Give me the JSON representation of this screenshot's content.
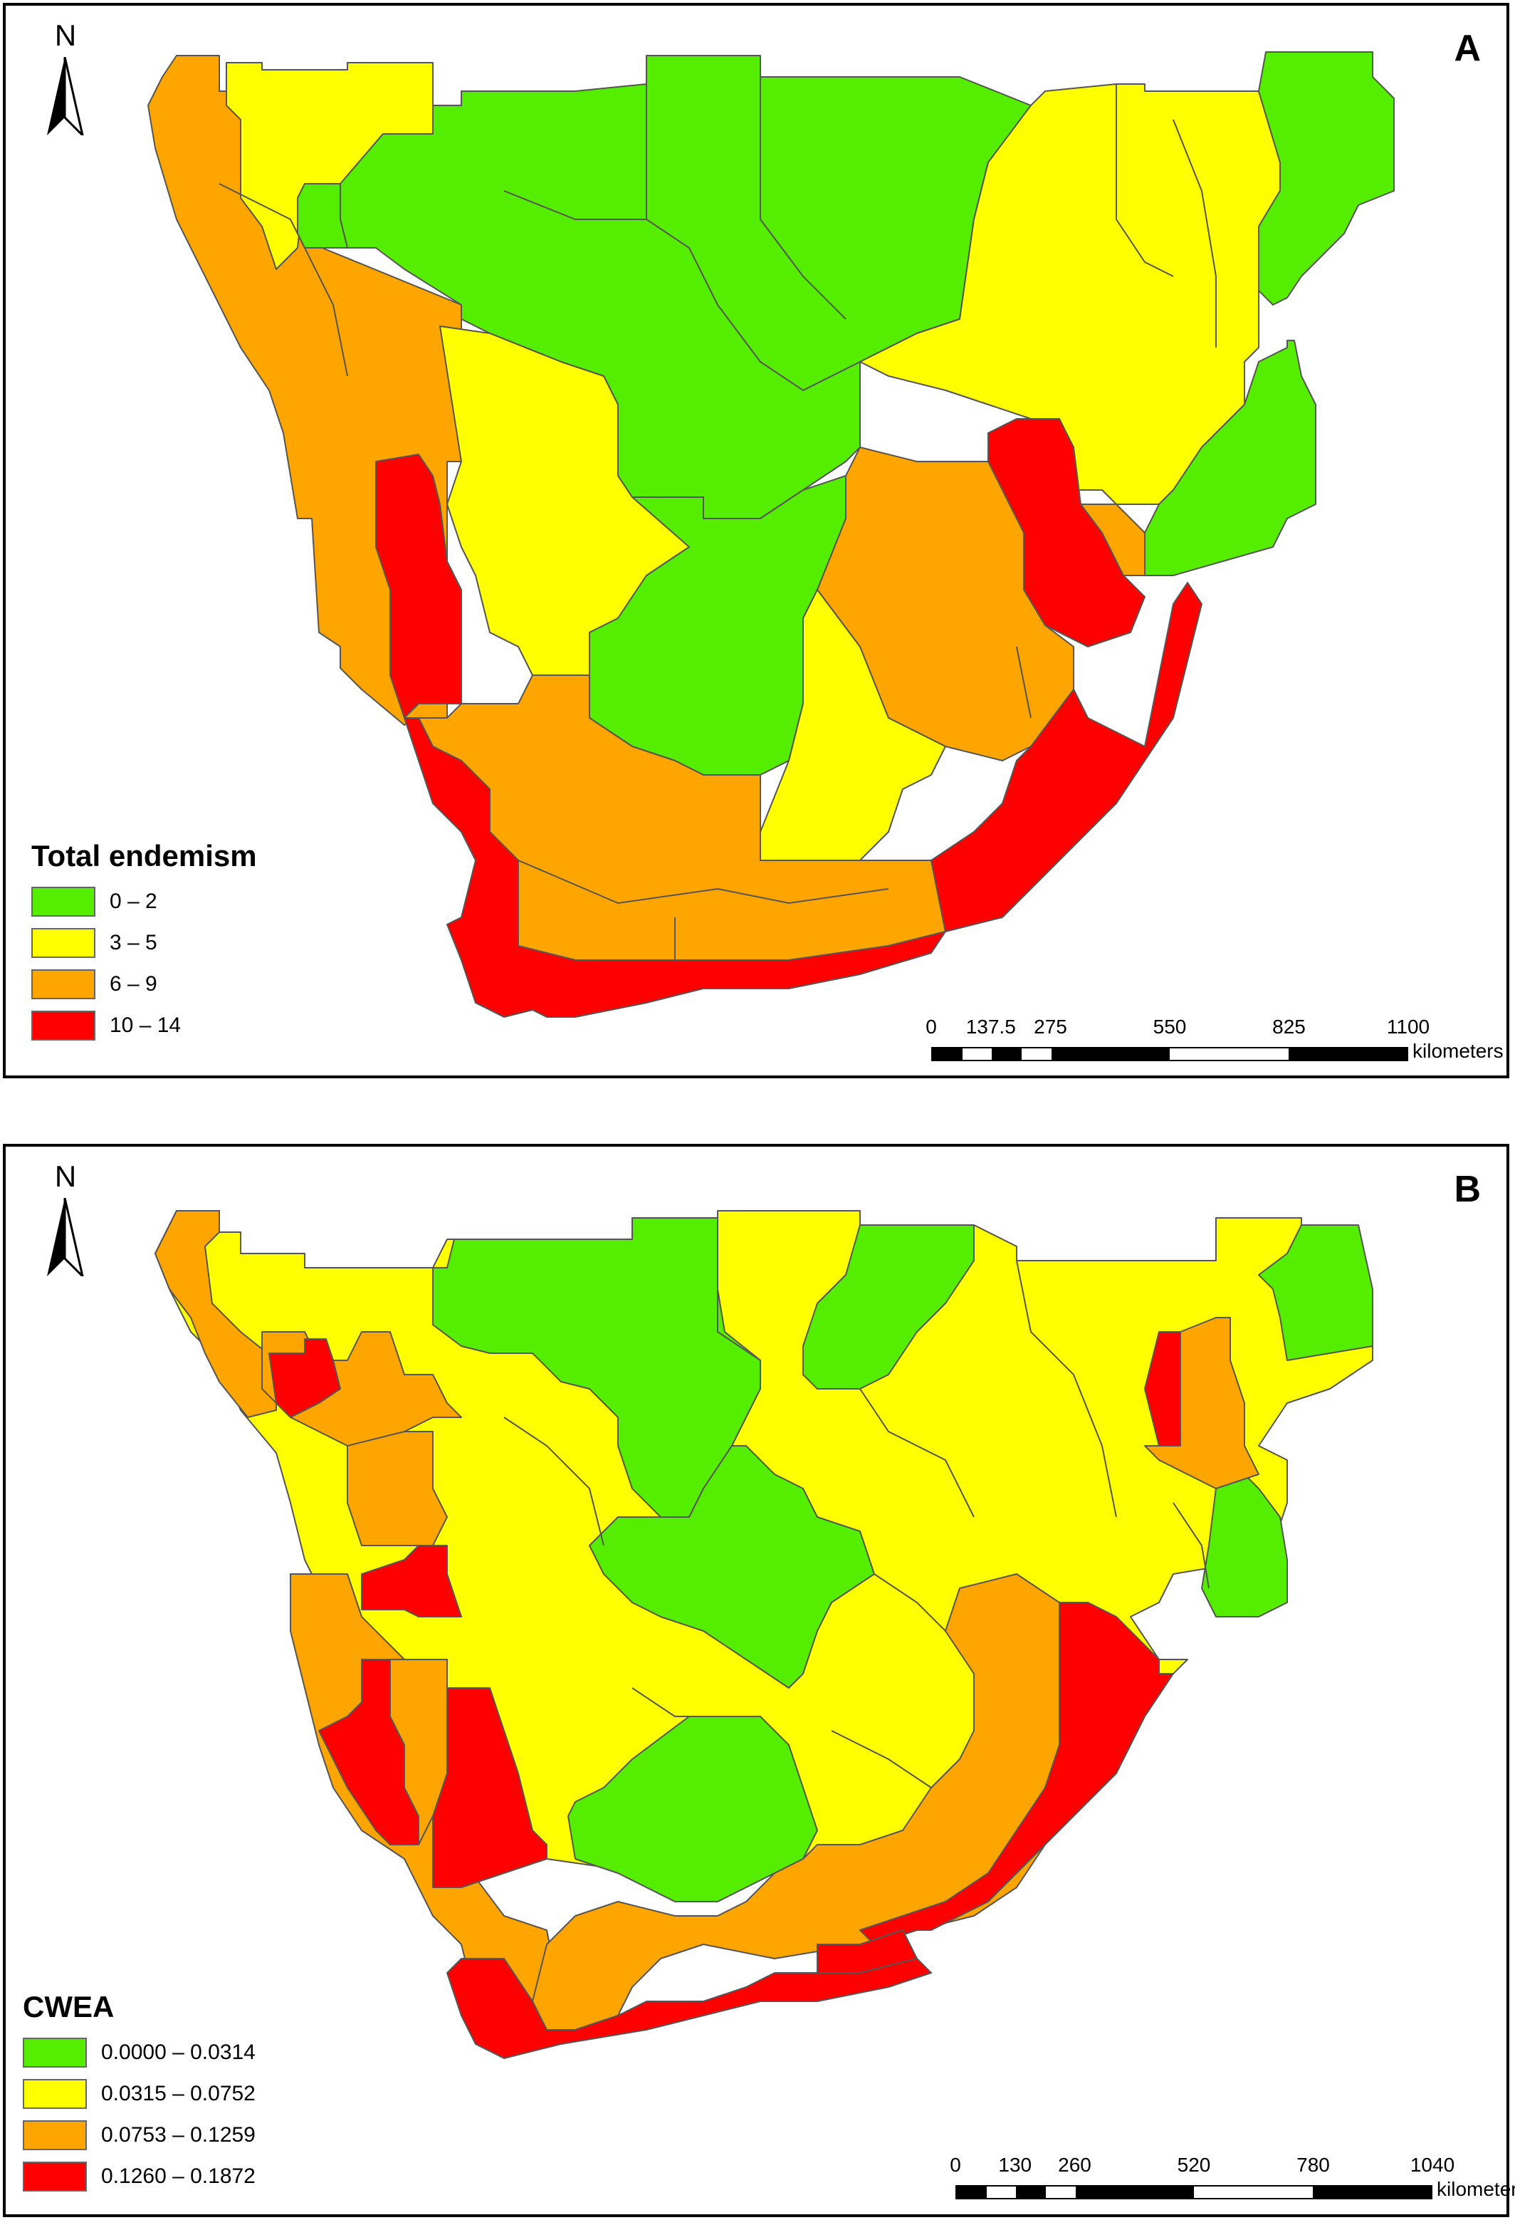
{
  "colors": {
    "green": "#55ee00",
    "yellow": "#ffff00",
    "orange": "#ffa500",
    "red": "#ff0000",
    "border": "#555555",
    "bar_black": "#000000",
    "bar_white": "#ffffff"
  },
  "panels": [
    {
      "letter": "A",
      "north_label": "N",
      "north_icon": "north-arrow-icon",
      "legend": {
        "title": "Total endemism",
        "items": [
          {
            "label": "0 – 2",
            "color": "#55ee00"
          },
          {
            "label": "3 – 5",
            "color": "#ffff00"
          },
          {
            "label": "6 – 9",
            "color": "#ffa500"
          },
          {
            "label": "10 – 14",
            "color": "#ff0000"
          }
        ]
      },
      "scale": {
        "ticks": [
          "0",
          "137.5",
          "275",
          "550",
          "825",
          "1100"
        ],
        "values": [
          0,
          137.5,
          275,
          550,
          825,
          1100
        ],
        "unit": "kilometers"
      }
    },
    {
      "letter": "B",
      "north_label": "N",
      "north_icon": "north-arrow-icon",
      "legend": {
        "title": "CWEA",
        "items": [
          {
            "label": "0.0000 – 0.0314",
            "color": "#55ee00"
          },
          {
            "label": "0.0315 – 0.0752",
            "color": "#ffff00"
          },
          {
            "label": "0.0753 – 0.1259",
            "color": "#ffa500"
          },
          {
            "label": "0.1260 – 0.1872",
            "color": "#ff0000"
          }
        ]
      },
      "scale": {
        "ticks": [
          "0",
          "130",
          "260",
          "520",
          "780",
          "1040"
        ],
        "values": [
          0,
          130,
          260,
          520,
          780,
          1040
        ],
        "unit": "kilometers"
      }
    }
  ]
}
